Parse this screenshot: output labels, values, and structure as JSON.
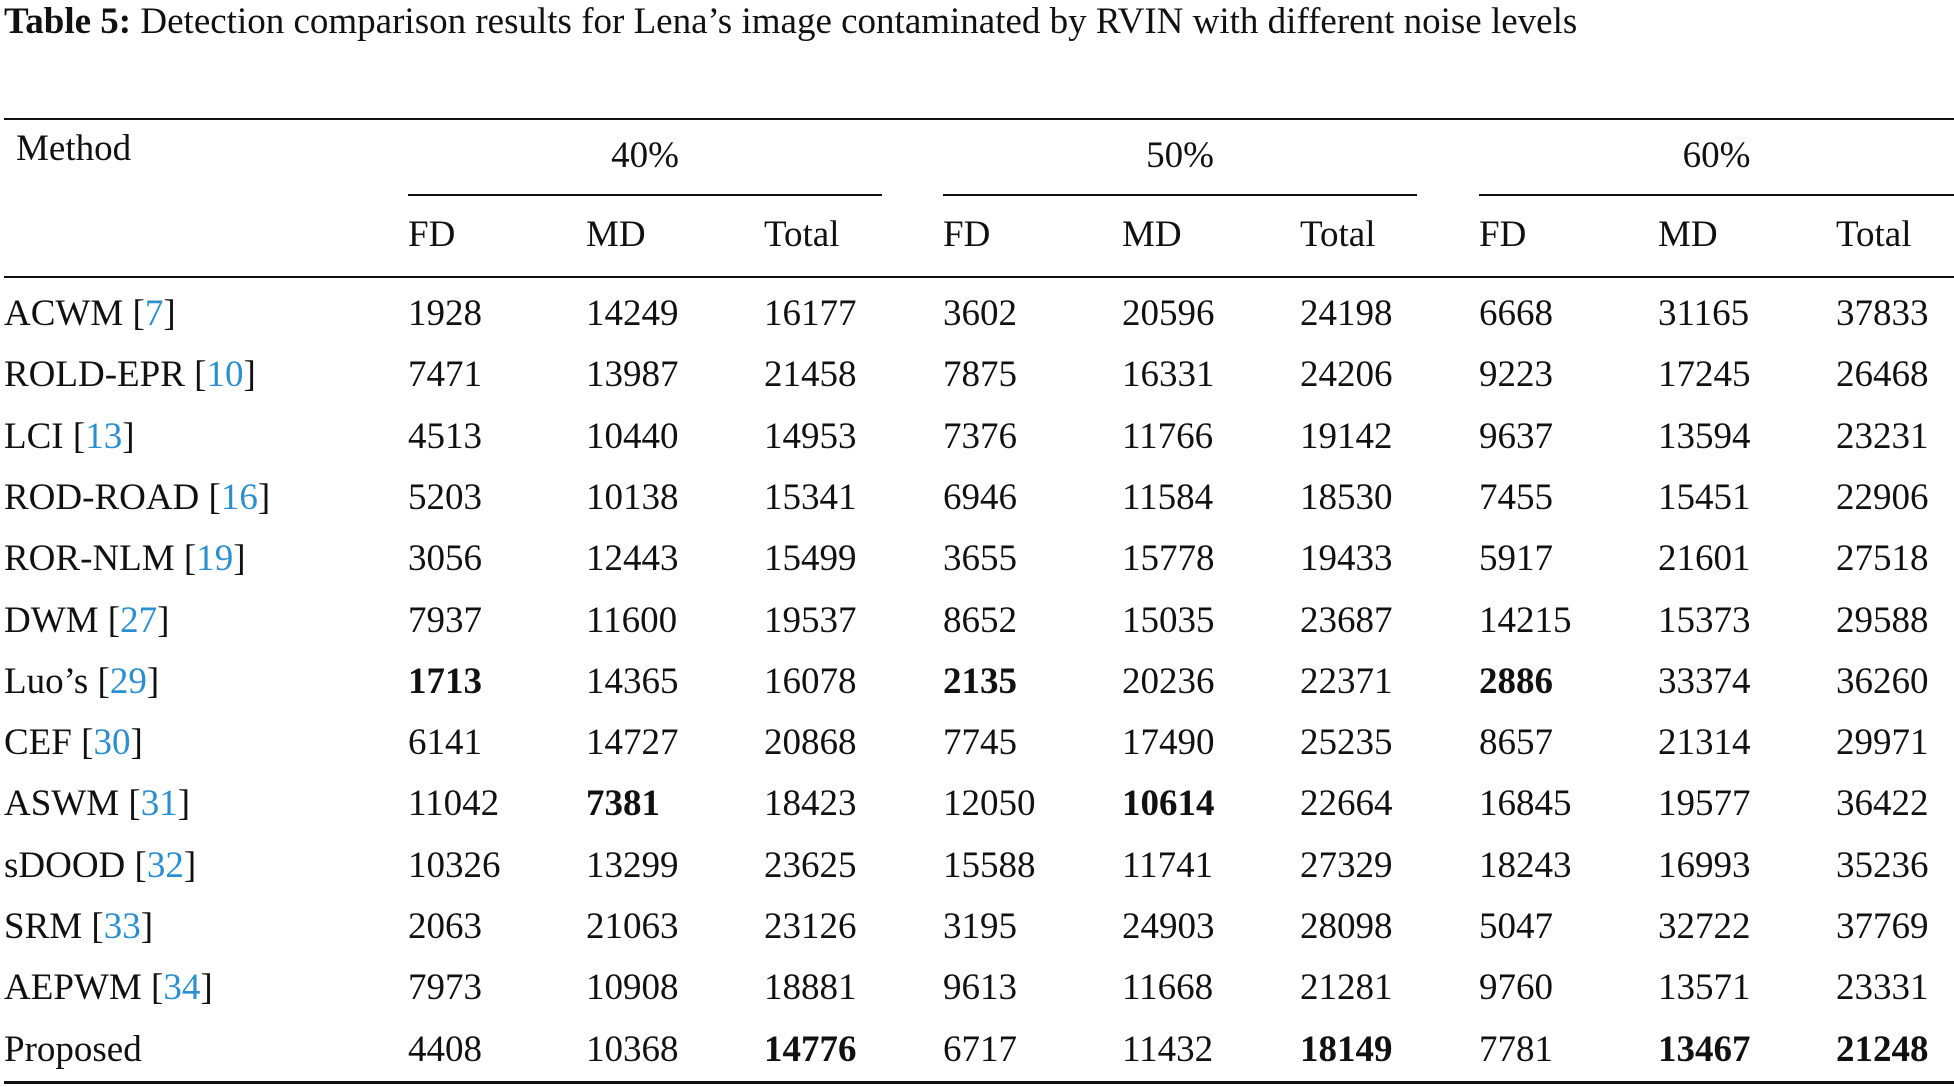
{
  "caption": {
    "label": "Table 5:",
    "text": "Detection comparison results for Lena’s image contaminated by RVIN with different noise levels"
  },
  "header": {
    "method": "Method",
    "groups": [
      "40%",
      "50%",
      "60%"
    ],
    "subcols": [
      "FD",
      "MD",
      "Total"
    ]
  },
  "colors": {
    "ref_link": "#2b8fcf",
    "text": "#111111"
  },
  "rows": [
    {
      "method": "ACWM",
      "ref": "7",
      "values": [
        "1928",
        "14249",
        "16177",
        "3602",
        "20596",
        "24198",
        "6668",
        "31165",
        "37833"
      ],
      "bold": []
    },
    {
      "method": "ROLD-EPR",
      "ref": "10",
      "values": [
        "7471",
        "13987",
        "21458",
        "7875",
        "16331",
        "24206",
        "9223",
        "17245",
        "26468"
      ],
      "bold": []
    },
    {
      "method": "LCI",
      "ref": "13",
      "values": [
        "4513",
        "10440",
        "14953",
        "7376",
        "11766",
        "19142",
        "9637",
        "13594",
        "23231"
      ],
      "bold": []
    },
    {
      "method": "ROD-ROAD",
      "ref": "16",
      "values": [
        "5203",
        "10138",
        "15341",
        "6946",
        "11584",
        "18530",
        "7455",
        "15451",
        "22906"
      ],
      "bold": []
    },
    {
      "method": "ROR-NLM",
      "ref": "19",
      "values": [
        "3056",
        "12443",
        "15499",
        "3655",
        "15778",
        "19433",
        "5917",
        "21601",
        "27518"
      ],
      "bold": []
    },
    {
      "method": "DWM",
      "ref": "27",
      "values": [
        "7937",
        "11600",
        "19537",
        "8652",
        "15035",
        "23687",
        "14215",
        "15373",
        "29588"
      ],
      "bold": []
    },
    {
      "method": "Luo’s",
      "ref": "29",
      "values": [
        "1713",
        "14365",
        "16078",
        "2135",
        "20236",
        "22371",
        "2886",
        "33374",
        "36260"
      ],
      "bold": [
        0,
        3,
        6
      ]
    },
    {
      "method": "CEF",
      "ref": "30",
      "values": [
        "6141",
        "14727",
        "20868",
        "7745",
        "17490",
        "25235",
        "8657",
        "21314",
        "29971"
      ],
      "bold": []
    },
    {
      "method": "ASWM",
      "ref": "31",
      "values": [
        "11042",
        "7381",
        "18423",
        "12050",
        "10614",
        "22664",
        "16845",
        "19577",
        "36422"
      ],
      "bold": [
        1,
        4
      ]
    },
    {
      "method": "sDOOD",
      "ref": "32",
      "values": [
        "10326",
        "13299",
        "23625",
        "15588",
        "11741",
        "27329",
        "18243",
        "16993",
        "35236"
      ],
      "bold": []
    },
    {
      "method": "SRM",
      "ref": "33",
      "values": [
        "2063",
        "21063",
        "23126",
        "3195",
        "24903",
        "28098",
        "5047",
        "32722",
        "37769"
      ],
      "bold": []
    },
    {
      "method": "AEPWM",
      "ref": "34",
      "values": [
        "7973",
        "10908",
        "18881",
        "9613",
        "11668",
        "21281",
        "9760",
        "13571",
        "23331"
      ],
      "bold": []
    },
    {
      "method": "Proposed",
      "ref": "",
      "values": [
        "4408",
        "10368",
        "14776",
        "6717",
        "11432",
        "18149",
        "7781",
        "13467",
        "21248"
      ],
      "bold": [
        2,
        5,
        7,
        8
      ]
    }
  ]
}
